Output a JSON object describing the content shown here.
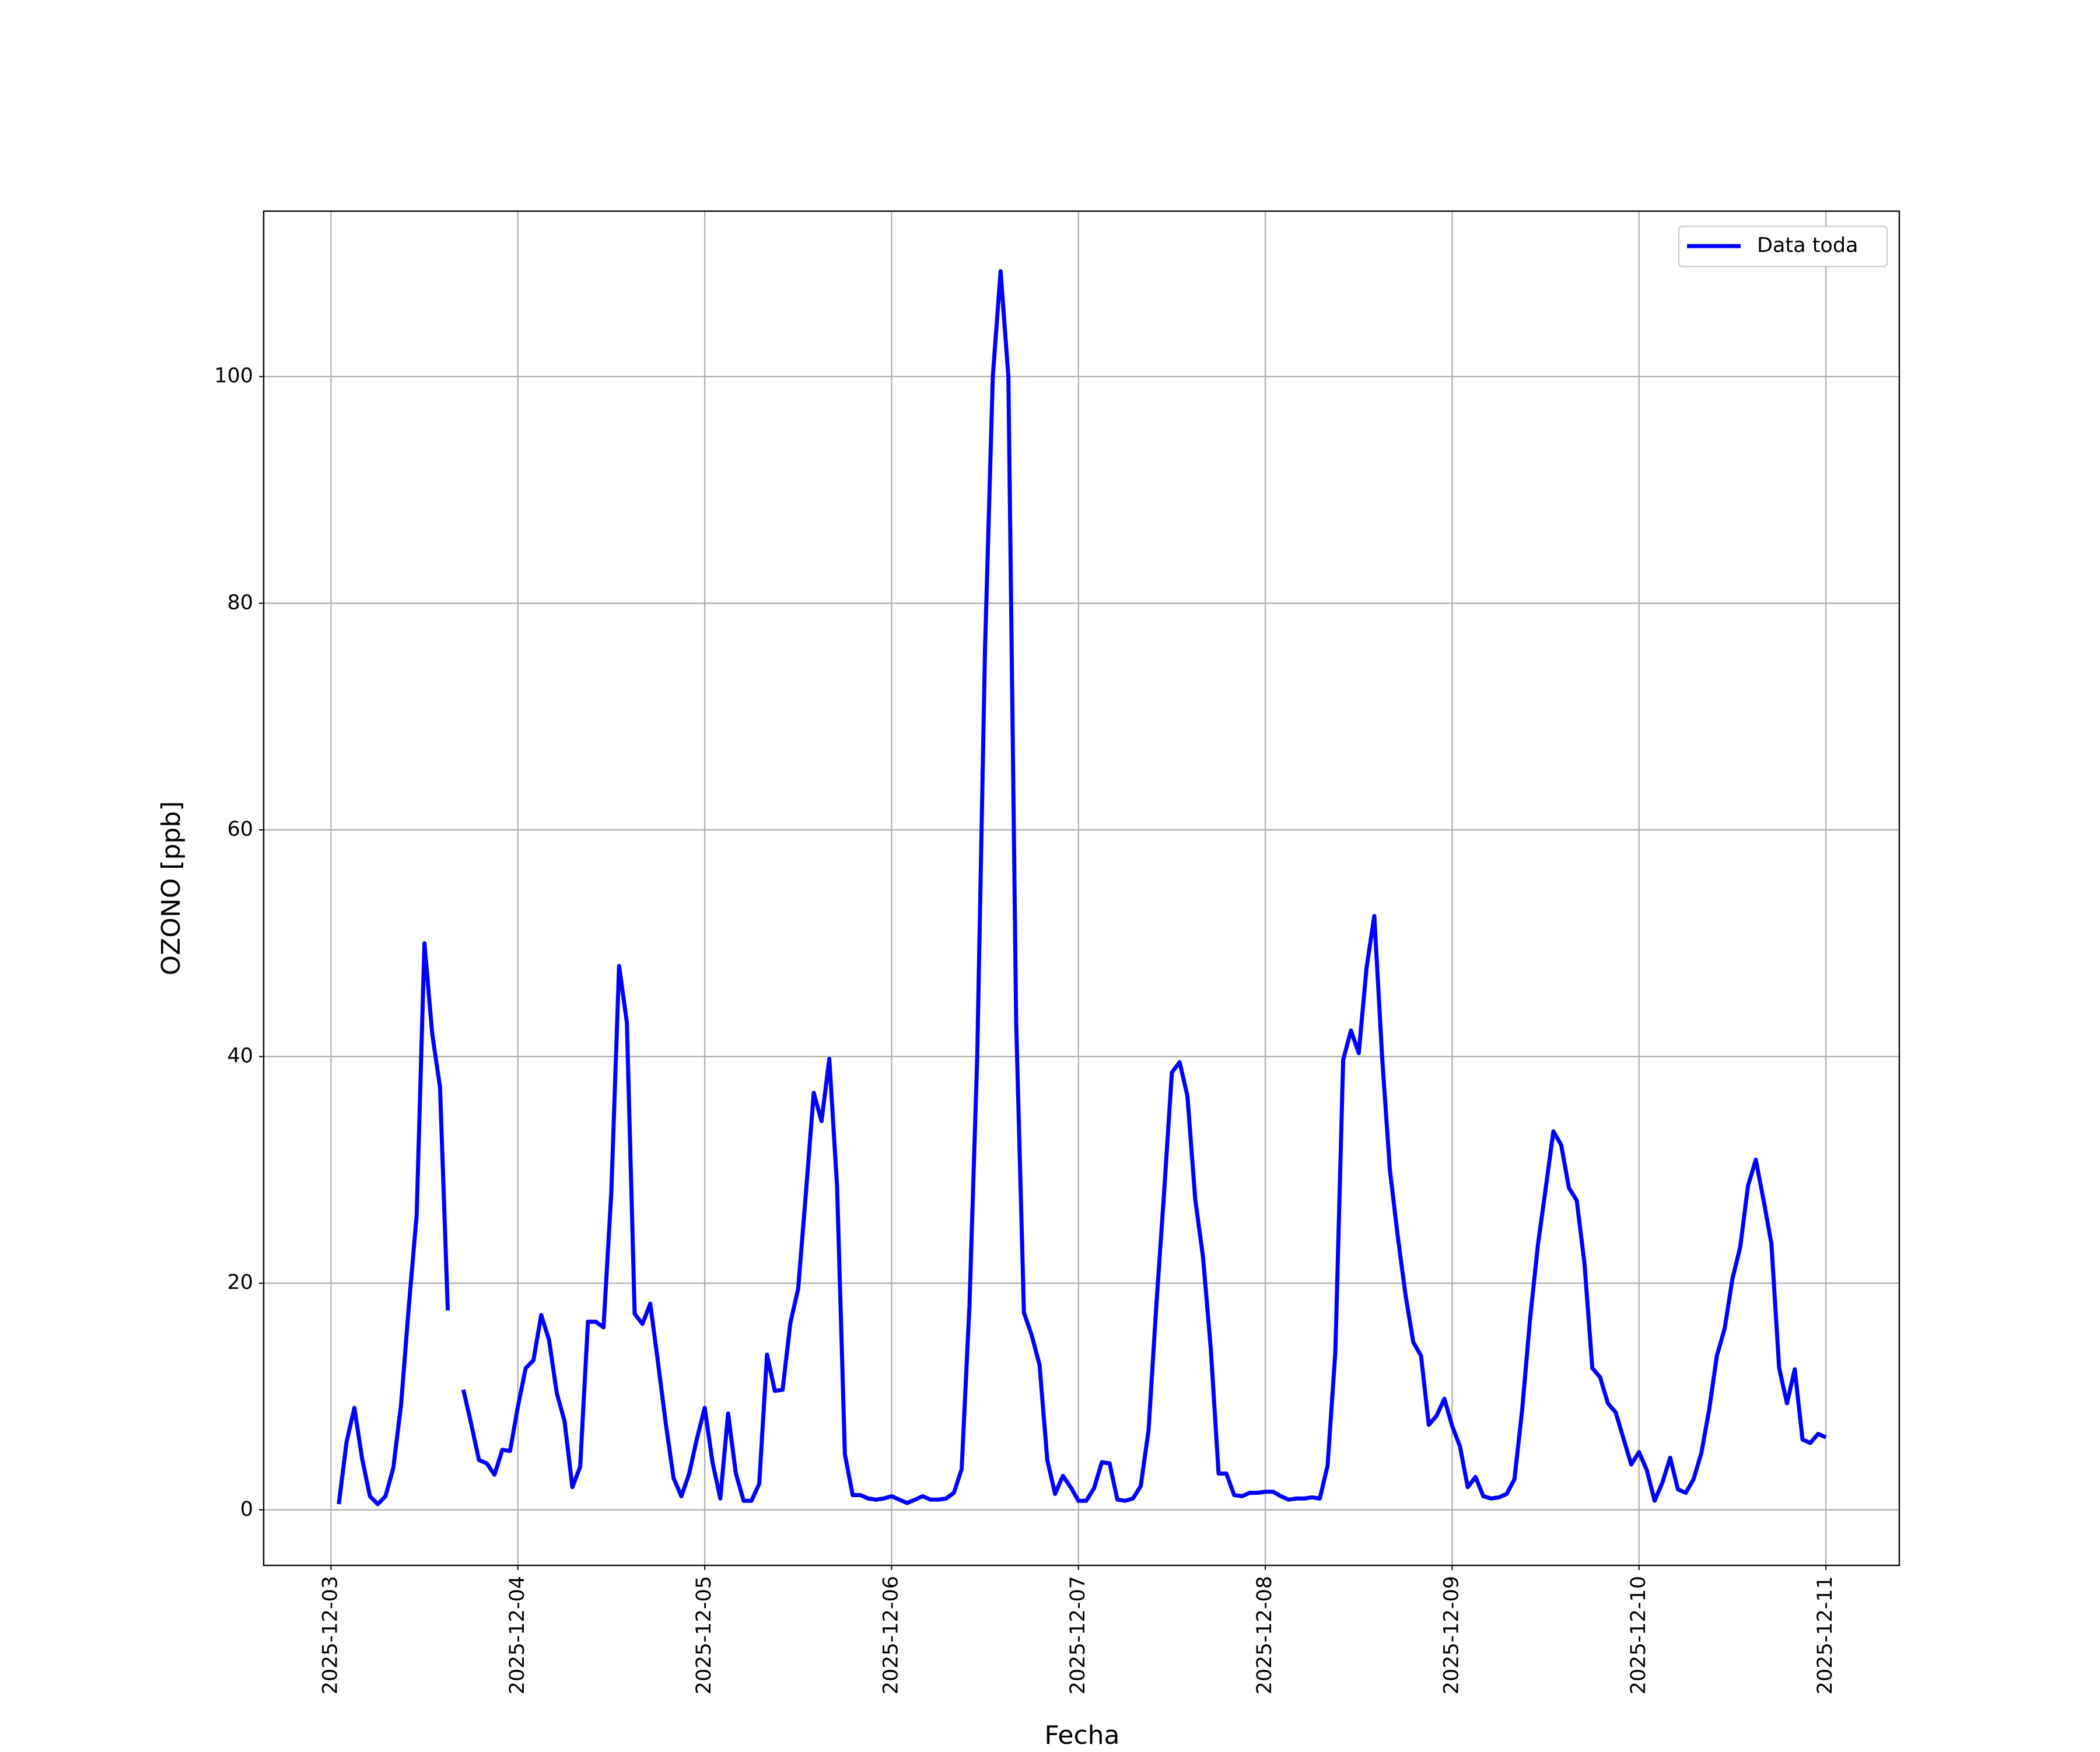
{
  "chart_data": {
    "type": "line",
    "xlabel": "Fecha",
    "ylabel": "OZONO [ppb]",
    "xlim": [
      "2025-12-02 15:21",
      "2025-12-11 09:26"
    ],
    "xticks": [
      "2025-12-03",
      "2025-12-04",
      "2025-12-05",
      "2025-12-06",
      "2025-12-07",
      "2025-12-08",
      "2025-12-09",
      "2025-12-10",
      "2025-12-11"
    ],
    "ylim": [
      -4.9,
      114.6
    ],
    "yticks": [
      0,
      20,
      40,
      60,
      80,
      100
    ],
    "grid": true,
    "legend": "upper right",
    "x": [
      "2025-12-03 01:00",
      "2025-12-03 02:00",
      "2025-12-03 03:00",
      "2025-12-03 04:00",
      "2025-12-03 05:00",
      "2025-12-03 06:00",
      "2025-12-03 07:00",
      "2025-12-03 08:00",
      "2025-12-03 09:00",
      "2025-12-03 10:00",
      "2025-12-03 11:00",
      "2025-12-03 12:00",
      "2025-12-03 13:00",
      "2025-12-03 14:00",
      "2025-12-03 15:00",
      "2025-12-03 16:00",
      "2025-12-03 17:00",
      "2025-12-03 18:00",
      "2025-12-03 19:00",
      "2025-12-03 20:00",
      "2025-12-03 21:00",
      "2025-12-03 22:00",
      "2025-12-03 23:00",
      "2025-12-04 00:00",
      "2025-12-04 01:00",
      "2025-12-04 02:00",
      "2025-12-04 03:00",
      "2025-12-04 04:00",
      "2025-12-04 05:00",
      "2025-12-04 06:00",
      "2025-12-04 07:00",
      "2025-12-04 08:00",
      "2025-12-04 09:00",
      "2025-12-04 10:00",
      "2025-12-04 11:00",
      "2025-12-04 12:00",
      "2025-12-04 13:00",
      "2025-12-04 14:00",
      "2025-12-04 15:00",
      "2025-12-04 16:00",
      "2025-12-04 17:00",
      "2025-12-04 18:00",
      "2025-12-04 19:00",
      "2025-12-04 20:00",
      "2025-12-04 21:00",
      "2025-12-04 22:00",
      "2025-12-04 23:00",
      "2025-12-05 00:00",
      "2025-12-05 01:00",
      "2025-12-05 02:00",
      "2025-12-05 03:00",
      "2025-12-05 04:00",
      "2025-12-05 05:00",
      "2025-12-05 06:00",
      "2025-12-05 07:00",
      "2025-12-05 08:00",
      "2025-12-05 09:00",
      "2025-12-05 10:00",
      "2025-12-05 11:00",
      "2025-12-05 12:00",
      "2025-12-05 13:00",
      "2025-12-05 14:00",
      "2025-12-05 15:00",
      "2025-12-05 16:00",
      "2025-12-05 17:00",
      "2025-12-05 18:00",
      "2025-12-05 19:00",
      "2025-12-05 20:00",
      "2025-12-05 21:00",
      "2025-12-05 22:00",
      "2025-12-05 23:00",
      "2025-12-06 00:00",
      "2025-12-06 01:00",
      "2025-12-06 02:00",
      "2025-12-06 03:00",
      "2025-12-06 04:00",
      "2025-12-06 05:00",
      "2025-12-06 06:00",
      "2025-12-06 07:00",
      "2025-12-06 08:00",
      "2025-12-06 09:00",
      "2025-12-06 10:00",
      "2025-12-06 11:00",
      "2025-12-06 12:00",
      "2025-12-06 13:00",
      "2025-12-06 14:00",
      "2025-12-06 15:00",
      "2025-12-06 16:00",
      "2025-12-06 17:00",
      "2025-12-06 18:00",
      "2025-12-06 19:00",
      "2025-12-06 20:00",
      "2025-12-06 21:00",
      "2025-12-06 22:00",
      "2025-12-06 23:00",
      "2025-12-07 00:00",
      "2025-12-07 01:00",
      "2025-12-07 02:00",
      "2025-12-07 03:00",
      "2025-12-07 04:00",
      "2025-12-07 05:00",
      "2025-12-07 06:00",
      "2025-12-07 07:00",
      "2025-12-07 08:00",
      "2025-12-07 09:00",
      "2025-12-07 10:00",
      "2025-12-07 11:00",
      "2025-12-07 12:00",
      "2025-12-07 13:00",
      "2025-12-07 14:00",
      "2025-12-07 15:00",
      "2025-12-07 16:00",
      "2025-12-07 17:00",
      "2025-12-07 18:00",
      "2025-12-07 19:00",
      "2025-12-07 20:00",
      "2025-12-07 21:00",
      "2025-12-07 22:00",
      "2025-12-07 23:00",
      "2025-12-08 00:00",
      "2025-12-08 01:00",
      "2025-12-08 02:00",
      "2025-12-08 03:00",
      "2025-12-08 04:00",
      "2025-12-08 05:00",
      "2025-12-08 06:00",
      "2025-12-08 07:00",
      "2025-12-08 08:00",
      "2025-12-08 09:00",
      "2025-12-08 10:00",
      "2025-12-08 11:00",
      "2025-12-08 12:00",
      "2025-12-08 13:00",
      "2025-12-08 14:00",
      "2025-12-08 15:00",
      "2025-12-08 16:00",
      "2025-12-08 17:00",
      "2025-12-08 18:00",
      "2025-12-08 19:00",
      "2025-12-08 20:00",
      "2025-12-08 21:00",
      "2025-12-08 22:00",
      "2025-12-08 23:00",
      "2025-12-09 00:00",
      "2025-12-09 01:00",
      "2025-12-09 02:00",
      "2025-12-09 03:00",
      "2025-12-09 04:00",
      "2025-12-09 05:00",
      "2025-12-09 06:00",
      "2025-12-09 07:00",
      "2025-12-09 08:00",
      "2025-12-09 09:00",
      "2025-12-09 10:00",
      "2025-12-09 11:00",
      "2025-12-09 12:00",
      "2025-12-09 13:00",
      "2025-12-09 14:00",
      "2025-12-09 15:00",
      "2025-12-09 16:00",
      "2025-12-09 17:00",
      "2025-12-09 18:00",
      "2025-12-09 19:00",
      "2025-12-09 20:00",
      "2025-12-09 21:00",
      "2025-12-09 22:00",
      "2025-12-09 23:00",
      "2025-12-10 00:00",
      "2025-12-10 01:00",
      "2025-12-10 02:00",
      "2025-12-10 03:00",
      "2025-12-10 04:00",
      "2025-12-10 05:00",
      "2025-12-10 06:00",
      "2025-12-10 07:00",
      "2025-12-10 08:00",
      "2025-12-10 09:00",
      "2025-12-10 10:00",
      "2025-12-10 11:00",
      "2025-12-10 12:00",
      "2025-12-10 13:00",
      "2025-12-10 14:00",
      "2025-12-10 15:00",
      "2025-12-10 16:00",
      "2025-12-10 17:00",
      "2025-12-10 18:00",
      "2025-12-10 19:00",
      "2025-12-10 20:00",
      "2025-12-10 21:00",
      "2025-12-10 22:00",
      "2025-12-10 23:00",
      "2025-12-11 00:00"
    ],
    "series": [
      {
        "name": "Data toda",
        "color": "#0000ff",
        "values": [
          0.5,
          6,
          9,
          4.5,
          1.2,
          0.5,
          1.2,
          3.7,
          9.3,
          18,
          26,
          50,
          42,
          37.3,
          17.6,
          null,
          10.6,
          7.6,
          4.4,
          4.1,
          3.1,
          5.3,
          5.2,
          9.1,
          12.5,
          13.2,
          17.2,
          15,
          10.3,
          7.8,
          2,
          3.8,
          16.6,
          16.6,
          16.1,
          28,
          48,
          43,
          17.3,
          16.4,
          18.2,
          13,
          7.6,
          2.8,
          1.2,
          3.2,
          6.3,
          9,
          4.2,
          1,
          8.5,
          3.2,
          0.8,
          0.8,
          2.3,
          13.7,
          10.5,
          10.6,
          16.5,
          19.5,
          28,
          36.8,
          34.3,
          39.8,
          28.5,
          4.9,
          1.3,
          1.3,
          1,
          0.9,
          1,
          1.2,
          0.9,
          0.6,
          0.9,
          1.2,
          0.9,
          0.9,
          1,
          1.5,
          3.6,
          18,
          40,
          76,
          100,
          109.3,
          100,
          43,
          17.4,
          15.4,
          12.8,
          4.4,
          1.4,
          3,
          2,
          0.8,
          0.8,
          1.9,
          4.2,
          4.1,
          0.9,
          0.8,
          1,
          2.1,
          7,
          18,
          28,
          38.6,
          39.5,
          36.5,
          27.4,
          22.3,
          14.2,
          3.2,
          3.2,
          1.3,
          1.2,
          1.5,
          1.5,
          1.6,
          1.6,
          1.2,
          0.9,
          1,
          1,
          1.1,
          1,
          3.9,
          14,
          39.7,
          42.3,
          40.3,
          47.8,
          52.4,
          40,
          30,
          24.2,
          19,
          14.8,
          13.6,
          7.5,
          8.3,
          9.8,
          7.4,
          5.6,
          2,
          2.9,
          1.2,
          1,
          1.1,
          1.4,
          2.7,
          8.9,
          16.8,
          23.3,
          28.3,
          33.4,
          32.2,
          28.4,
          27.3,
          21.7,
          12.5,
          11.7,
          9.4,
          8.6,
          6.3,
          4,
          5.1,
          3.5,
          0.8,
          2.4,
          4.6,
          1.8,
          1.5,
          2.7,
          5,
          8.8,
          13.6,
          16,
          20.4,
          23.2,
          28.6,
          30.9,
          27.3,
          23.5,
          12.5,
          9.4,
          12.4,
          6.2,
          5.9,
          6.7,
          6.4
        ]
      }
    ]
  }
}
